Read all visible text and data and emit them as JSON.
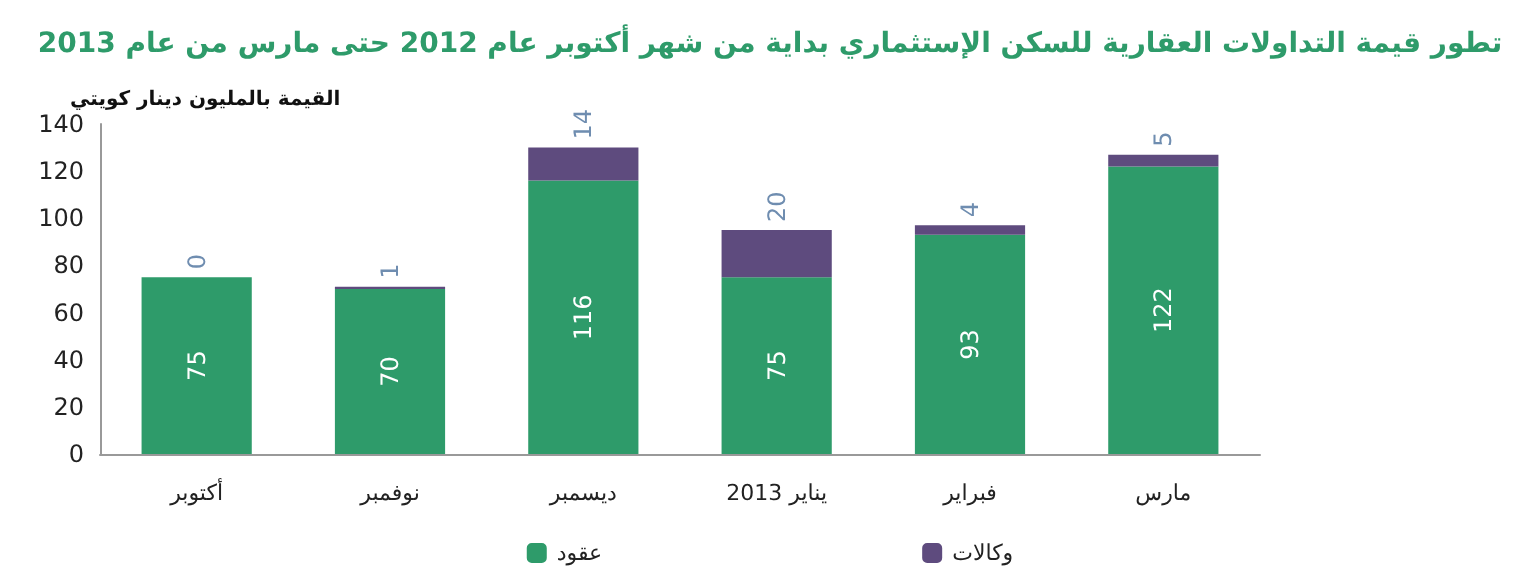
{
  "chart_data": {
    "type": "bar",
    "title": "تطور قيمة التداولات العقارية للسكن الإستثماري بداية من شهر أكتوبر عام 2012 حتى مارس من عام 2013",
    "ylabel": "القيمة بالمليون دينار كويتي",
    "categories": [
      "أكتوبر",
      "نوفمبر",
      "ديسمبر",
      "يناير 2013",
      "فبراير",
      "مارس"
    ],
    "series": [
      {
        "name": "عقود",
        "color": "#2e9b6a",
        "values": [
          75,
          70,
          116,
          75,
          93,
          122
        ]
      },
      {
        "name": "وكالات",
        "color": "#5e4b7e",
        "values": [
          0,
          1,
          14,
          20,
          4,
          5
        ]
      }
    ],
    "stacked": true,
    "ylim": [
      0,
      140
    ],
    "yticks": [
      0,
      20,
      40,
      60,
      80,
      100,
      120,
      140
    ],
    "grid": false,
    "legend": "bottom",
    "data_labels": true
  }
}
